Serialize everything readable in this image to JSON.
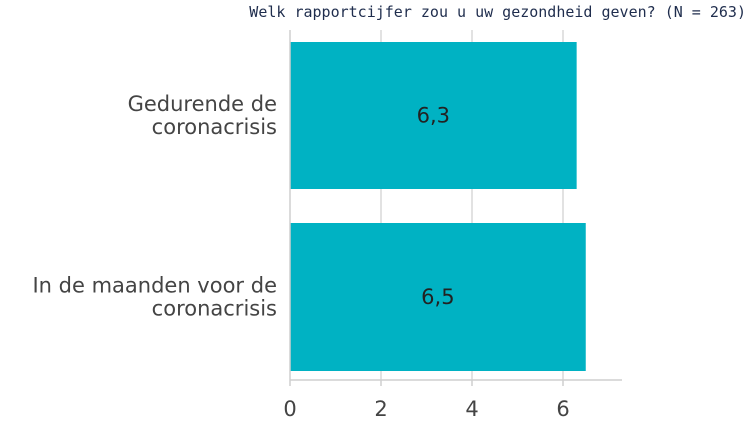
{
  "chart_data": {
    "type": "bar",
    "orientation": "horizontal",
    "title": "Welk rapportcijfer zou u uw gezondheid geven? (N = 263)",
    "categories": [
      [
        "Gedurende de",
        "coronacrisis"
      ],
      [
        "In de maanden voor de",
        "coronacrisis"
      ]
    ],
    "values": [
      6.3,
      6.5
    ],
    "value_labels": [
      "6,3",
      "6,5"
    ],
    "xlim": [
      0,
      7
    ],
    "x_ticks": [
      0,
      2,
      4,
      6
    ],
    "x_tick_labels": [
      "0",
      "2",
      "4",
      "6"
    ],
    "grid": "vertical",
    "bar_color": "#00b2c3",
    "grid_color": "#d9d9d9",
    "axis_color": "#cfcfcf"
  }
}
